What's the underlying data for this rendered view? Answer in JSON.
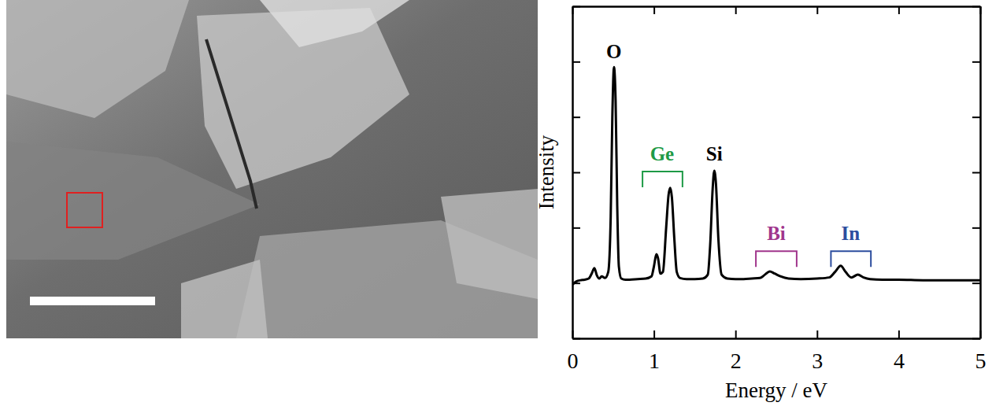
{
  "chart_data": {
    "type": "line",
    "x_label": "Energy / eV",
    "y_label": "Intensity",
    "xlim": [
      0,
      5
    ],
    "xticks": [
      0,
      1,
      2,
      3,
      4,
      5
    ],
    "ylim": [
      0,
      6
    ],
    "yticks": [
      0,
      1,
      2,
      3,
      4,
      5,
      6
    ],
    "tick_labels": "x",
    "x": [
      0,
      0.05,
      0.1,
      0.15,
      0.2,
      0.24,
      0.27,
      0.3,
      0.33,
      0.36,
      0.4,
      0.44,
      0.47,
      0.49,
      0.51,
      0.53,
      0.55,
      0.57,
      0.6,
      0.65,
      0.7,
      0.8,
      0.9,
      0.97,
      1.0,
      1.03,
      1.05,
      1.08,
      1.11,
      1.15,
      1.18,
      1.2,
      1.22,
      1.25,
      1.28,
      1.32,
      1.4,
      1.5,
      1.6,
      1.66,
      1.69,
      1.72,
      1.74,
      1.76,
      1.79,
      1.83,
      1.9,
      2.0,
      2.1,
      2.2,
      2.3,
      2.36,
      2.42,
      2.48,
      2.55,
      2.65,
      2.8,
      3.0,
      3.15,
      3.22,
      3.29,
      3.35,
      3.42,
      3.5,
      3.57,
      3.65,
      3.8,
      4.0,
      4.3,
      4.6,
      5.0
    ],
    "series": [
      {
        "color": "#000000",
        "values": [
          0.97,
          1.03,
          1.05,
          1.06,
          1.08,
          1.18,
          1.27,
          1.14,
          1.08,
          1.12,
          1.09,
          1.2,
          2.2,
          4.0,
          4.9,
          4.3,
          2.4,
          1.3,
          1.08,
          1.06,
          1.06,
          1.07,
          1.08,
          1.12,
          1.3,
          1.52,
          1.45,
          1.17,
          1.2,
          2.0,
          2.6,
          2.72,
          2.55,
          1.8,
          1.2,
          1.09,
          1.07,
          1.07,
          1.08,
          1.15,
          1.7,
          2.7,
          3.03,
          2.8,
          1.8,
          1.15,
          1.08,
          1.07,
          1.07,
          1.08,
          1.09,
          1.15,
          1.21,
          1.17,
          1.12,
          1.08,
          1.07,
          1.08,
          1.1,
          1.2,
          1.31,
          1.2,
          1.1,
          1.15,
          1.1,
          1.07,
          1.06,
          1.06,
          1.05,
          1.05,
          1.05
        ]
      }
    ],
    "annotations": [
      {
        "text": "O",
        "x": 0.51,
        "y": 5.14,
        "color": "#000000"
      },
      {
        "text": "Ge",
        "x": 1.1,
        "y": 3.3,
        "color": "#1e9a46",
        "bracket": [
          0.86,
          1.35
        ]
      },
      {
        "text": "Si",
        "x": 1.74,
        "y": 3.3,
        "color": "#000000"
      },
      {
        "text": "Bi",
        "x": 2.5,
        "y": 1.86,
        "color": "#a0358c",
        "bracket": [
          2.25,
          2.75
        ]
      },
      {
        "text": "In",
        "x": 3.41,
        "y": 1.86,
        "color": "#2c4d9e",
        "bracket": [
          3.17,
          3.66
        ]
      }
    ]
  }
}
